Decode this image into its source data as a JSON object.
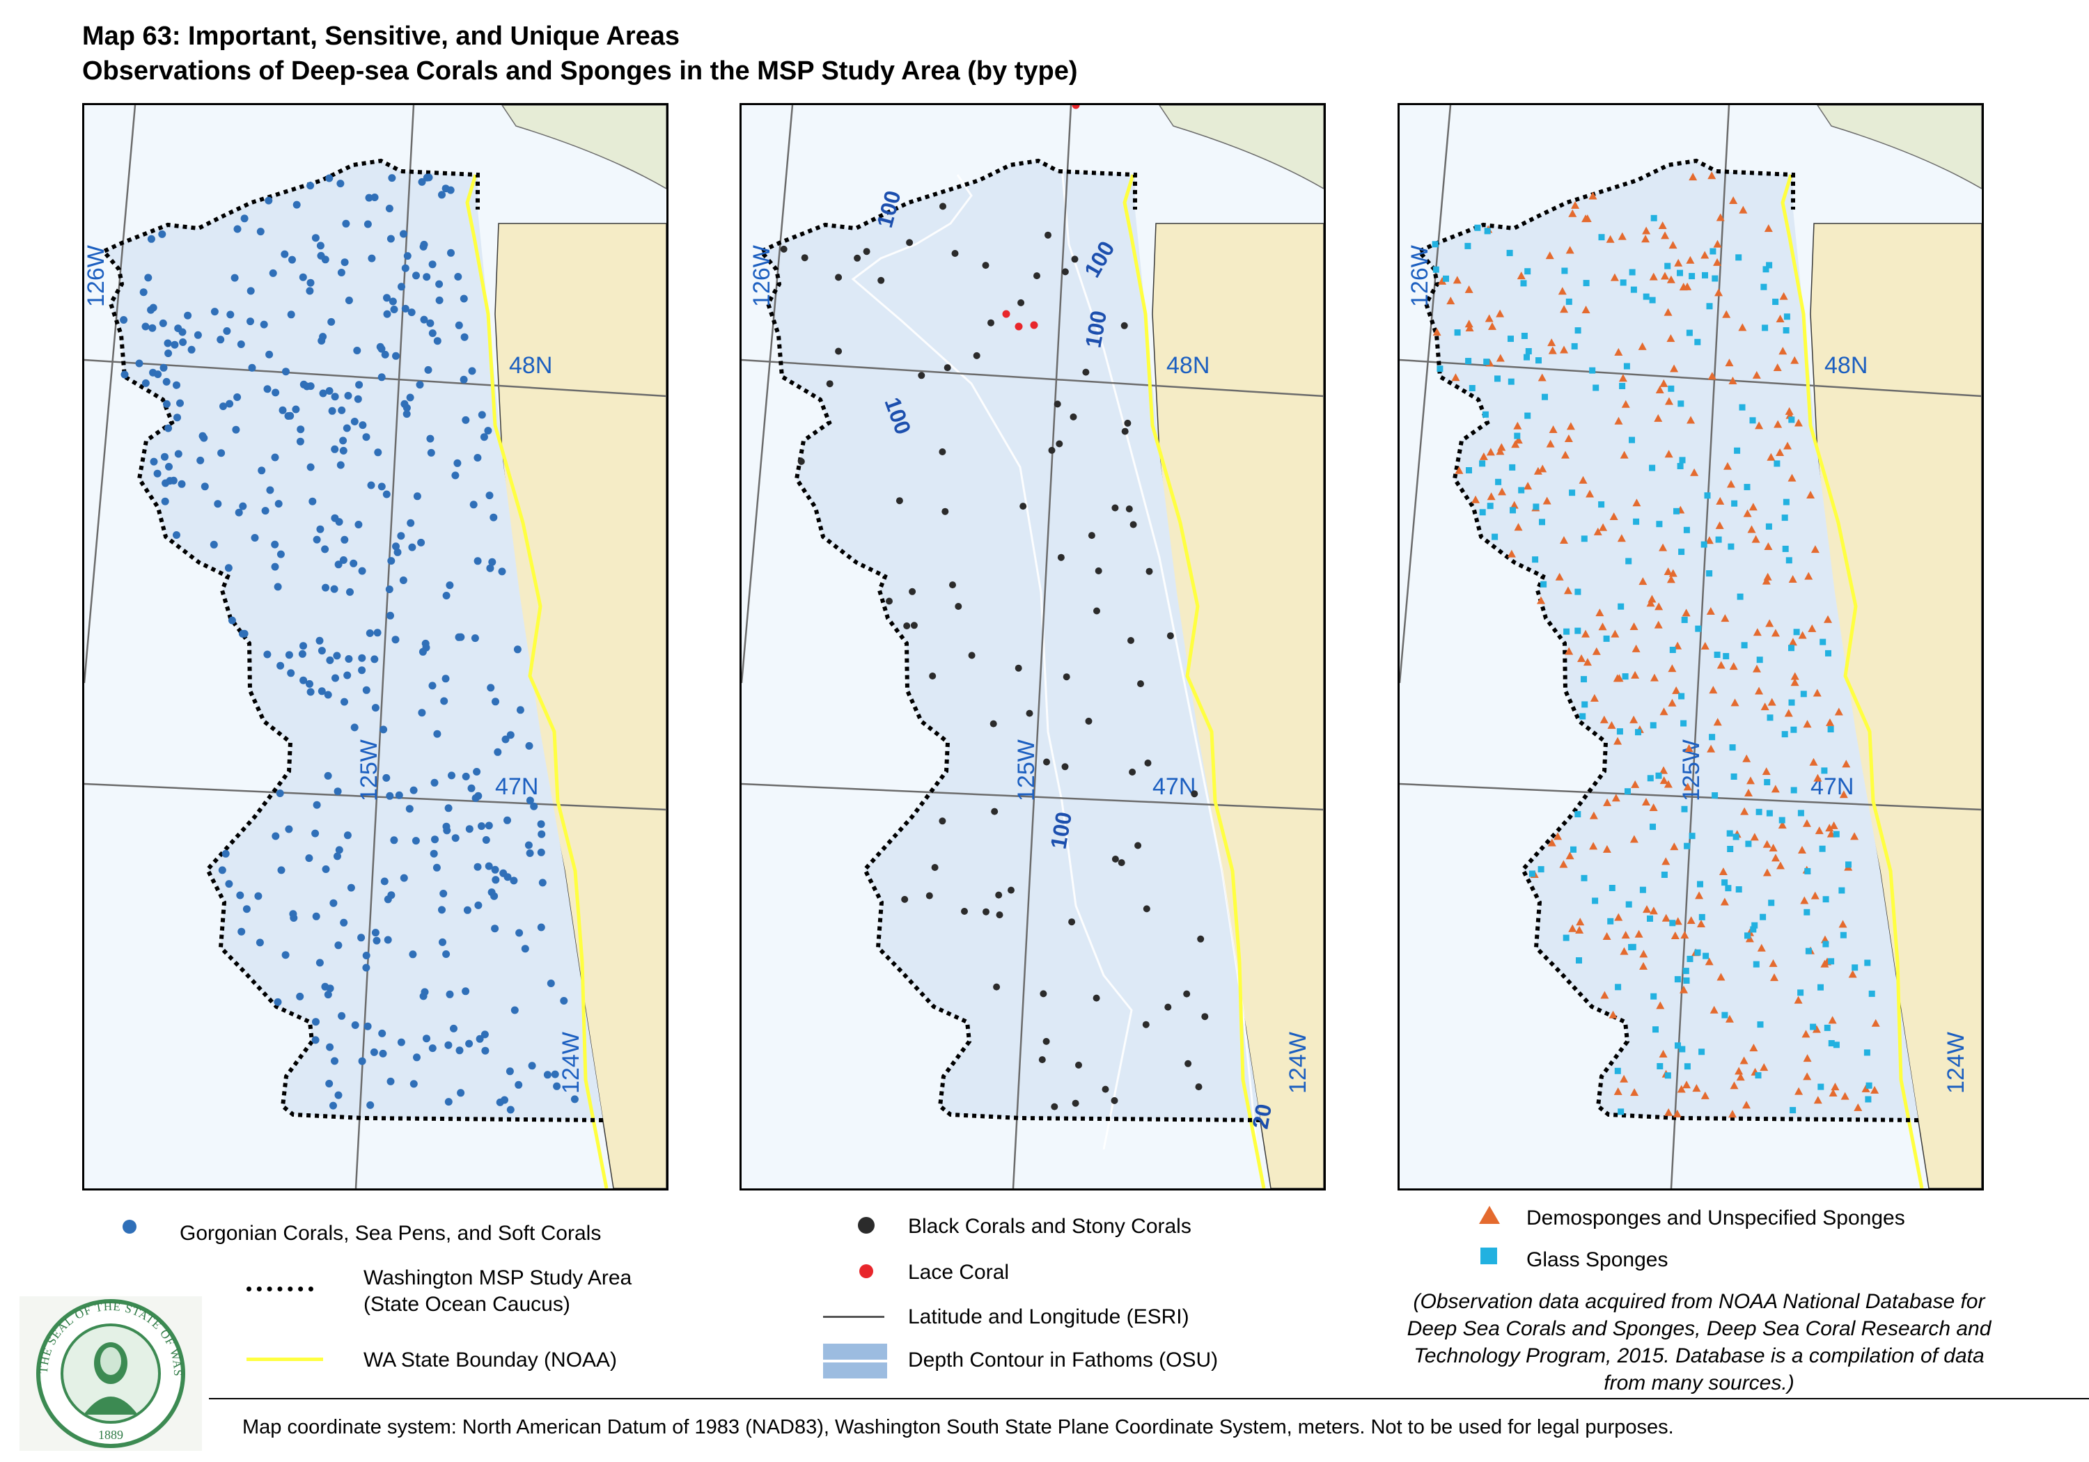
{
  "title": {
    "line1": "Map 63: Important, Sensitive, and Unique Areas",
    "line2": "Observations of Deep-sea Corals and Sponges in the MSP Study Area (by type)"
  },
  "map_labels": {
    "lon_126": "126W",
    "lon_125": "125W",
    "lon_124": "124W",
    "lat_48": "48N",
    "lat_47": "47N",
    "depth_100": "100",
    "depth_20": "20"
  },
  "legend": {
    "gorgonian": "Gorgonian Corals, Sea Pens, and Soft Corals",
    "study_area_1": "Washington MSP Study Area",
    "study_area_2": "(State Ocean Caucus)",
    "boundary": "WA State Bounday (NOAA)",
    "black_corals": "Black Corals and Stony Corals",
    "lace_coral": "Lace Coral",
    "latlon": "Latitude and Longitude (ESRI)",
    "depth_contour": "Depth Contour in Fathoms (OSU)",
    "demosponges": "Demosponges and Unspecified Sponges",
    "glass_sponges": "Glass Sponges"
  },
  "note": {
    "line1": "(Observation data acquired from NOAA National Database for",
    "line2": "Deep Sea Corals and Sponges, Deep Sea Coral Research and",
    "line3": "Technology Program, 2015. Database is a compilation of data",
    "line4": "from many sources.)"
  },
  "footer": "Map coordinate system: North American Datum of 1983 (NAD83), Washington South State Plane Coordinate System, meters. Not to be used for legal purposes.",
  "seal": {
    "text_top": "THE SEAL OF THE STATE OF WASHINGTON",
    "year": "1889"
  },
  "colors": {
    "gorgonian": "#2f6fb8",
    "black_coral": "#2b2b2b",
    "lace_coral": "#e8262b",
    "demosponge": "#e46a2e",
    "glass_sponge": "#22b1e0",
    "boundary": "#ffff40",
    "land": "#f5ecc6",
    "land_north": "#e6ecd6",
    "study_area": "#dde9f6",
    "ocean": "#f2f8fd",
    "label_blue": "#1c5fc0"
  }
}
